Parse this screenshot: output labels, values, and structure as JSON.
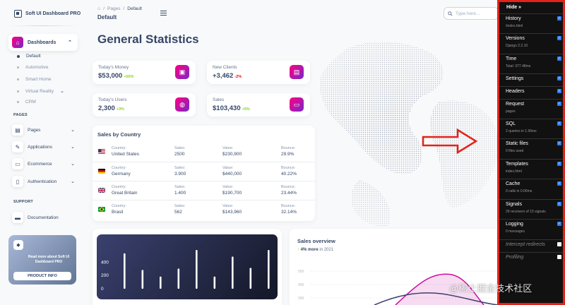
{
  "brand": {
    "name": "Soft UI Dashboard PRO"
  },
  "sidebar": {
    "active": {
      "label": "Dashboards"
    },
    "sub_items": [
      {
        "label": "Default"
      },
      {
        "label": "Automotive"
      },
      {
        "label": "Smart Home"
      },
      {
        "label": "Virtual Reality"
      },
      {
        "label": "CRM"
      }
    ],
    "pages_title": "PAGES",
    "pages": [
      {
        "label": "Pages"
      },
      {
        "label": "Applications"
      },
      {
        "label": "Ecommerce"
      },
      {
        "label": "Authentication"
      }
    ],
    "support_title": "SUPPORT",
    "support": [
      {
        "label": "Documentation"
      }
    ],
    "help": {
      "text": "Read more about Soft UI Dashboard PRO",
      "button": "PRODUCT INFO"
    }
  },
  "navbar": {
    "crumb_pages": "Pages",
    "crumb_sep": "/",
    "crumb_current": "Default",
    "page_title": "Default",
    "search_placeholder": "Type here..."
  },
  "main": {
    "title": "General Statistics",
    "stats": [
      {
        "label": "Today's Money",
        "value": "$53,000",
        "change": "+55%"
      },
      {
        "label": "New Clients",
        "value": "+3,462",
        "change": "-2%"
      },
      {
        "label": "Today's Users",
        "value": "2,300",
        "change": "+3%"
      },
      {
        "label": "Sales",
        "value": "$103,430",
        "change": "+5%"
      }
    ],
    "sales_table": {
      "title": "Sales by Country",
      "labels": {
        "country": "Country:",
        "sales": "Sales:",
        "value": "Value:",
        "bounce": "Bounce:"
      },
      "rows": [
        {
          "country": "United States",
          "sales": "2500",
          "value": "$230,900",
          "bounce": "29.9%"
        },
        {
          "country": "Germany",
          "sales": "3.900",
          "value": "$440,000",
          "bounce": "40.22%"
        },
        {
          "country": "Great Britain",
          "sales": "1.400",
          "value": "$190,700",
          "bounce": "23.44%"
        },
        {
          "country": "Brasil",
          "sales": "562",
          "value": "$143,960",
          "bounce": "32.14%"
        }
      ]
    },
    "overview": {
      "title": "Sales overview",
      "change": "4% more",
      "year": "in 2021",
      "y_ticks": [
        "500",
        "400",
        "300"
      ]
    }
  },
  "chart_data": {
    "type": "bar",
    "y_ticks": [
      "400",
      "200",
      "0"
    ],
    "ylim": [
      0,
      500
    ],
    "values": [
      450,
      200,
      100,
      220,
      500,
      100,
      400,
      230,
      500
    ]
  },
  "toolbar": {
    "hide": "Hide »",
    "items": [
      {
        "title": "History",
        "sub": "/index.html",
        "checked": true
      },
      {
        "title": "Versions",
        "sub": "Django 2.2.10",
        "checked": true
      },
      {
        "title": "Time",
        "sub": "Total: 377.48ms",
        "checked": true
      },
      {
        "title": "Settings",
        "sub": "",
        "checked": true
      },
      {
        "title": "Headers",
        "sub": "",
        "checked": true
      },
      {
        "title": "Request",
        "sub": "pages",
        "checked": true
      },
      {
        "title": "SQL",
        "sub": "2 queries in 1.96ms",
        "checked": true
      },
      {
        "title": "Static files",
        "sub": "0 files used",
        "checked": true
      },
      {
        "title": "Templates",
        "sub": "index.html",
        "checked": true
      },
      {
        "title": "Cache",
        "sub": "0 calls in 0.00ms",
        "checked": true
      },
      {
        "title": "Signals",
        "sub": "29 receivers of 15 signals",
        "checked": true
      },
      {
        "title": "Logging",
        "sub": "0 messages",
        "checked": true
      },
      {
        "title": "Intercept redirects",
        "sub": "",
        "checked": false
      },
      {
        "title": "Profiling",
        "sub": "",
        "checked": false
      }
    ]
  },
  "watermark": "@稀土掘金技术社区"
}
